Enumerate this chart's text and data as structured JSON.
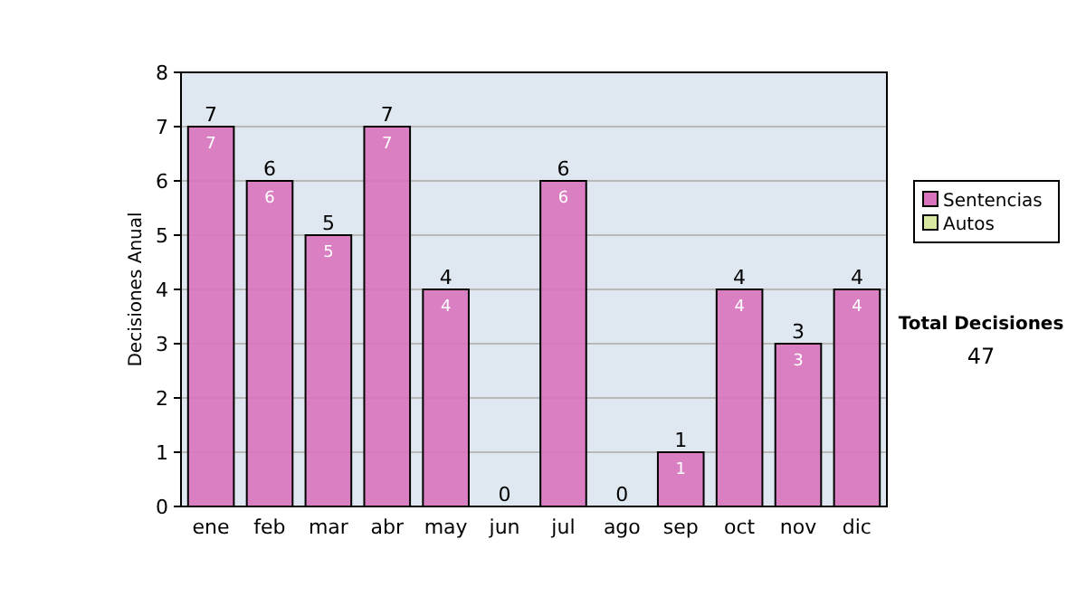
{
  "chart_data": {
    "type": "bar",
    "ylabel": "Decisiones Anual",
    "categories": [
      "ene",
      "feb",
      "mar",
      "abr",
      "may",
      "jun",
      "jul",
      "ago",
      "sep",
      "oct",
      "nov",
      "dic"
    ],
    "series": [
      {
        "name": "Sentencias",
        "color": "#d973bb",
        "values": [
          7,
          6,
          5,
          7,
          4,
          0,
          6,
          0,
          1,
          4,
          3,
          4
        ],
        "value_labels": [
          "7",
          "6",
          "5",
          "7",
          "4",
          null,
          "6",
          null,
          "1",
          "4",
          "3",
          "4"
        ]
      },
      {
        "name": "Autos",
        "color": "#d9e8a0",
        "values": [
          0,
          0,
          0,
          0,
          0,
          0,
          0,
          0,
          0,
          0,
          0,
          0
        ]
      }
    ],
    "stacked": true,
    "totals": [
      "7",
      "6",
      "5",
      "7",
      "4",
      "0",
      "6",
      "0",
      "1",
      "4",
      "3",
      "4"
    ],
    "ylim": [
      0,
      8
    ],
    "yticks": [
      0,
      1,
      2,
      3,
      4,
      5,
      6,
      7,
      8
    ],
    "grid": "y",
    "legend": "right",
    "annotations": [
      "Total Decisiones",
      "47"
    ]
  }
}
